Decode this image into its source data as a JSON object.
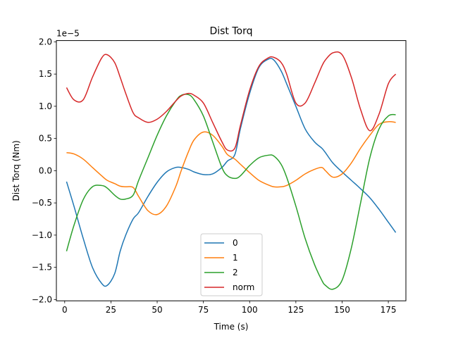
{
  "chart_data": {
    "type": "line",
    "title": "Dist Torq",
    "xlabel": "Time (s)",
    "ylabel": "Dist Torq (Nm)",
    "y_offset_label": "1e−5",
    "xlim": [
      -4.5,
      184.5
    ],
    "ylim": [
      -2.02,
      2.02
    ],
    "x_ticks": [
      0,
      25,
      50,
      75,
      100,
      125,
      150,
      175
    ],
    "y_ticks": [
      -2.0,
      -1.5,
      -1.0,
      -0.5,
      0.0,
      0.5,
      1.0,
      1.5,
      2.0
    ],
    "y_tick_labels": [
      "−2.0",
      "−1.5",
      "−1.0",
      "−0.5",
      "0.0",
      "0.5",
      "1.0",
      "1.5",
      "2.0"
    ],
    "grid": false,
    "legend_position": "lower-center",
    "x": [
      1,
      5,
      10,
      15,
      20,
      23,
      27,
      30,
      33,
      37,
      40,
      45,
      50,
      55,
      60,
      63,
      67,
      70,
      75,
      80,
      85,
      88,
      92,
      95,
      100,
      105,
      110,
      113,
      117,
      120,
      125,
      130,
      135,
      139,
      141,
      145,
      150,
      155,
      160,
      165,
      170,
      175,
      179
    ],
    "series": [
      {
        "name": "0",
        "color": "#1f77b4",
        "values": [
          -0.17,
          -0.55,
          -1.05,
          -1.5,
          -1.75,
          -1.78,
          -1.6,
          -1.25,
          -1.0,
          -0.75,
          -0.65,
          -0.4,
          -0.18,
          -0.02,
          0.05,
          0.05,
          0.02,
          -0.02,
          -0.06,
          -0.05,
          0.05,
          0.15,
          0.25,
          0.65,
          1.2,
          1.6,
          1.73,
          1.72,
          1.55,
          1.35,
          1.0,
          0.65,
          0.45,
          0.35,
          0.28,
          0.12,
          -0.02,
          -0.15,
          -0.28,
          -0.42,
          -0.6,
          -0.8,
          -0.96
        ]
      },
      {
        "name": "1",
        "color": "#ff7f0e",
        "values": [
          0.28,
          0.26,
          0.18,
          0.05,
          -0.08,
          -0.15,
          -0.2,
          -0.24,
          -0.25,
          -0.26,
          -0.4,
          -0.62,
          -0.68,
          -0.55,
          -0.25,
          0.0,
          0.3,
          0.48,
          0.6,
          0.55,
          0.38,
          0.25,
          0.18,
          0.1,
          -0.03,
          -0.15,
          -0.22,
          -0.25,
          -0.25,
          -0.23,
          -0.15,
          -0.05,
          0.02,
          0.05,
          0.0,
          -0.1,
          -0.05,
          0.12,
          0.35,
          0.55,
          0.72,
          0.76,
          0.75
        ]
      },
      {
        "name": "2",
        "color": "#2ca02c",
        "values": [
          -1.25,
          -0.85,
          -0.45,
          -0.25,
          -0.23,
          -0.27,
          -0.38,
          -0.44,
          -0.44,
          -0.38,
          -0.15,
          0.2,
          0.55,
          0.85,
          1.08,
          1.17,
          1.18,
          1.1,
          0.85,
          0.45,
          0.05,
          -0.08,
          -0.12,
          -0.08,
          0.08,
          0.2,
          0.24,
          0.23,
          0.1,
          -0.1,
          -0.55,
          -1.05,
          -1.45,
          -1.7,
          -1.78,
          -1.84,
          -1.7,
          -1.2,
          -0.5,
          0.2,
          0.65,
          0.85,
          0.87
        ]
      },
      {
        "name": "norm",
        "color": "#d62728",
        "values": [
          1.29,
          1.1,
          1.1,
          1.45,
          1.75,
          1.8,
          1.68,
          1.45,
          1.2,
          0.9,
          0.82,
          0.75,
          0.8,
          0.92,
          1.08,
          1.16,
          1.2,
          1.17,
          1.05,
          0.75,
          0.45,
          0.32,
          0.35,
          0.7,
          1.25,
          1.62,
          1.75,
          1.76,
          1.68,
          1.5,
          1.05,
          1.05,
          1.35,
          1.62,
          1.72,
          1.83,
          1.8,
          1.45,
          0.95,
          0.62,
          0.88,
          1.35,
          1.5
        ]
      }
    ]
  }
}
